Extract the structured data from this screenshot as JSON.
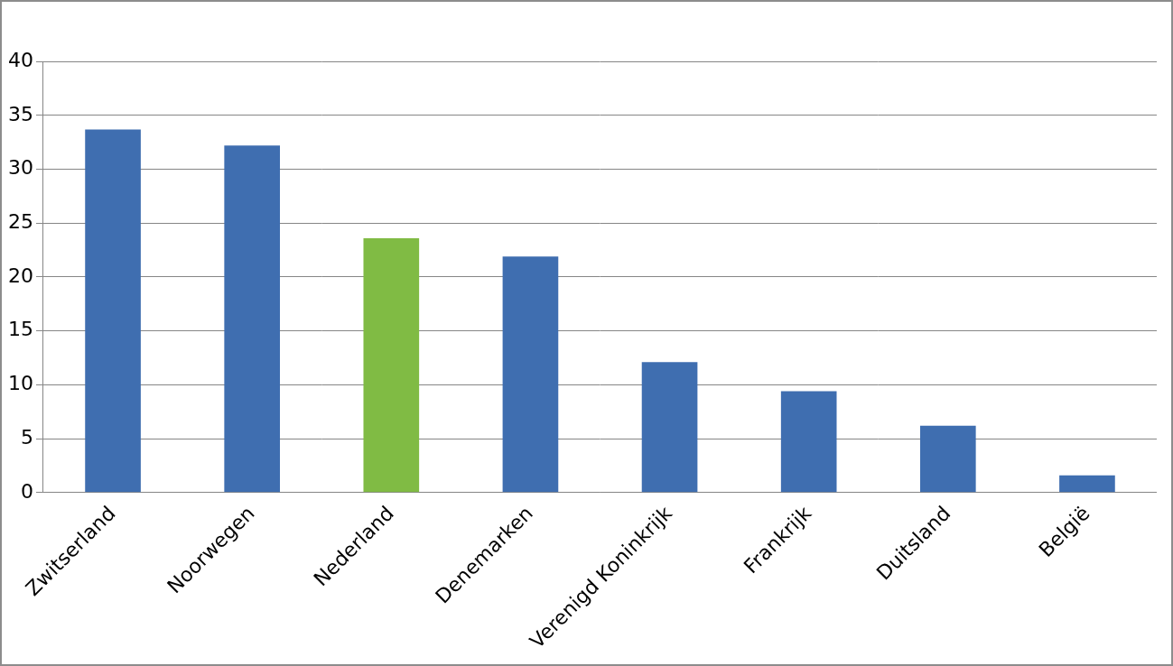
{
  "chart_data": {
    "type": "bar",
    "categories": [
      "Zwitserland",
      "Noorwegen",
      "Nederland",
      "Denemarken",
      "Verenigd Koninkrijk",
      "Frankrijk",
      "Duitsland",
      "België"
    ],
    "values": [
      33.7,
      32.2,
      23.6,
      21.9,
      12.1,
      9.4,
      6.2,
      1.6
    ],
    "colors": [
      "#3f6eb0",
      "#3f6eb0",
      "#80bb44",
      "#3f6eb0",
      "#3f6eb0",
      "#3f6eb0",
      "#3f6eb0",
      "#3f6eb0"
    ],
    "ylim": [
      0,
      40
    ],
    "yticks": [
      0,
      5,
      10,
      15,
      20,
      25,
      30,
      35,
      40
    ],
    "grid": true
  }
}
